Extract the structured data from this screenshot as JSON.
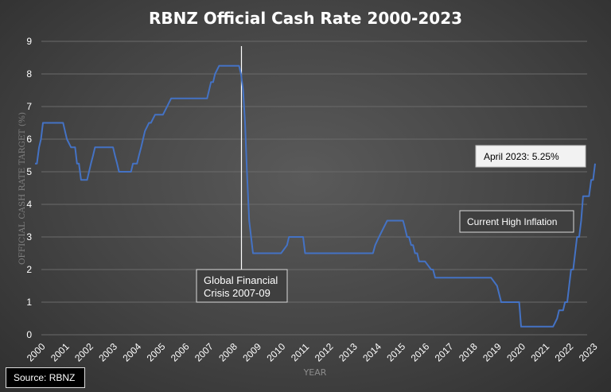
{
  "chart_data": {
    "type": "line",
    "title": "RBNZ Official Cash Rate 2000-2023",
    "xlabel": "YEAR",
    "ylabel": "OFFICIAL CASH RATE TARGET (%)",
    "ylim": [
      0,
      9
    ],
    "xlim": [
      2000,
      2023
    ],
    "yticks": [
      "0",
      "1",
      "2",
      "3",
      "4",
      "5",
      "6",
      "7",
      "8",
      "9"
    ],
    "xticks": [
      "2000",
      "2001",
      "2002",
      "2003",
      "2004",
      "2005",
      "2006",
      "2007",
      "2008",
      "2009",
      "2010",
      "2011",
      "2012",
      "2013",
      "2014",
      "2015",
      "2016",
      "2017",
      "2018",
      "2019",
      "2020",
      "2021",
      "2022",
      "2023"
    ],
    "grid": true,
    "legend": "none",
    "line_color": "#4472c4",
    "series": [
      {
        "x": [
          2000.0,
          2000.08,
          2000.17,
          2000.25,
          2000.33,
          2000.5,
          2000.75,
          2001.0,
          2001.08,
          2001.17,
          2001.25,
          2001.33,
          2001.5,
          2001.67,
          2001.75,
          2001.83,
          2001.92,
          2002.17,
          2002.25,
          2002.33,
          2002.42,
          2002.5,
          2002.67,
          2002.83,
          2003.0,
          2003.25,
          2003.33,
          2003.42,
          2003.5,
          2003.58,
          2003.75,
          2004.0,
          2004.08,
          2004.25,
          2004.33,
          2004.42,
          2004.5,
          2004.58,
          2004.75,
          2004.83,
          2005.0,
          2005.17,
          2005.33,
          2005.5,
          2005.67,
          2005.83,
          2006.0,
          2006.17,
          2006.33,
          2006.5,
          2006.67,
          2006.83,
          2007.0,
          2007.17,
          2007.25,
          2007.33,
          2007.42,
          2007.5,
          2007.67,
          2007.83,
          2008.0,
          2008.17,
          2008.33,
          2008.5,
          2008.58,
          2008.67,
          2008.75,
          2008.83,
          2008.92,
          2009.0,
          2009.08,
          2009.17,
          2009.25,
          2009.33,
          2009.42,
          2009.5,
          2010.0,
          2010.25,
          2010.5,
          2010.58,
          2010.67,
          2011.0,
          2011.17,
          2011.25,
          2011.5,
          2012.0,
          2013.0,
          2013.5,
          2014.0,
          2014.08,
          2014.17,
          2014.33,
          2014.5,
          2014.67,
          2015.0,
          2015.33,
          2015.42,
          2015.5,
          2015.58,
          2015.67,
          2015.75,
          2015.83,
          2015.92,
          2016.0,
          2016.17,
          2016.25,
          2016.5,
          2016.58,
          2016.67,
          2016.83,
          2017.0,
          2018.0,
          2018.5,
          2019.0,
          2019.25,
          2019.42,
          2019.58,
          2020.0,
          2020.17,
          2020.25,
          2021.0,
          2021.5,
          2021.58,
          2021.75,
          2021.83,
          2021.92,
          2022.0,
          2022.08,
          2022.17,
          2022.25,
          2022.33,
          2022.42,
          2022.5,
          2022.58,
          2022.67,
          2022.75,
          2022.83,
          2023.0,
          2023.08,
          2023.17,
          2023.25,
          2023.33
        ],
        "y": [
          5.25,
          5.25,
          5.75,
          6.0,
          6.5,
          6.5,
          6.5,
          6.5,
          6.5,
          6.5,
          6.25,
          6.0,
          5.75,
          5.75,
          5.25,
          5.25,
          4.75,
          4.75,
          5.0,
          5.25,
          5.5,
          5.75,
          5.75,
          5.75,
          5.75,
          5.75,
          5.5,
          5.25,
          5.0,
          5.0,
          5.0,
          5.0,
          5.25,
          5.25,
          5.5,
          5.75,
          6.0,
          6.25,
          6.5,
          6.5,
          6.75,
          6.75,
          6.75,
          7.0,
          7.25,
          7.25,
          7.25,
          7.25,
          7.25,
          7.25,
          7.25,
          7.25,
          7.25,
          7.25,
          7.5,
          7.75,
          7.75,
          8.0,
          8.25,
          8.25,
          8.25,
          8.25,
          8.25,
          8.25,
          8.0,
          7.5,
          6.5,
          5.0,
          3.5,
          3.0,
          2.5,
          2.5,
          2.5,
          2.5,
          2.5,
          2.5,
          2.5,
          2.5,
          2.75,
          3.0,
          3.0,
          3.0,
          3.0,
          2.5,
          2.5,
          2.5,
          2.5,
          2.5,
          2.5,
          2.5,
          2.75,
          3.0,
          3.25,
          3.5,
          3.5,
          3.5,
          3.25,
          3.0,
          3.0,
          2.75,
          2.75,
          2.5,
          2.5,
          2.25,
          2.25,
          2.25,
          2.0,
          2.0,
          1.75,
          1.75,
          1.75,
          1.75,
          1.75,
          1.75,
          1.5,
          1.0,
          1.0,
          1.0,
          1.0,
          0.25,
          0.25,
          0.25,
          0.25,
          0.5,
          0.75,
          0.75,
          0.75,
          1.0,
          1.0,
          1.5,
          2.0,
          2.0,
          2.5,
          3.0,
          3.0,
          3.5,
          4.25,
          4.25,
          4.25,
          4.75,
          4.75,
          5.25
        ]
      }
    ],
    "annotations": {
      "gfc_line_x": 2008.6,
      "gfc": [
        "Global Financial",
        "Crisis 2007-09"
      ],
      "april": "April 2023: 5.25%",
      "inflation": "Current High Inflation"
    },
    "source": "Source: RBNZ"
  }
}
